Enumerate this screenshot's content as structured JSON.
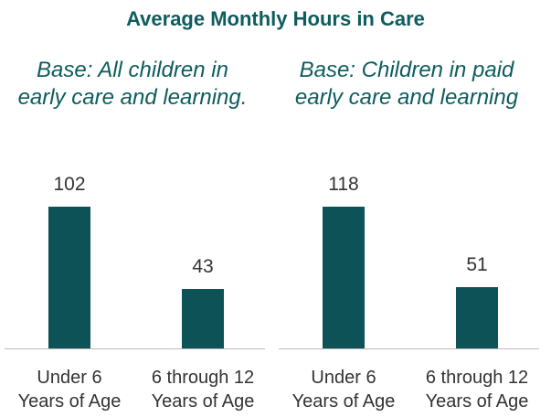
{
  "title": "Average Monthly Hours in Care",
  "chart_data": [
    {
      "type": "bar",
      "subtitle": "Base: All children in early care and learning.",
      "categories": [
        "Under 6 Years of Age",
        "6 through 12 Years of Age"
      ],
      "values": [
        102,
        43
      ],
      "color": "#0d5257"
    },
    {
      "type": "bar",
      "subtitle": "Base: Children in paid early care and learning",
      "categories": [
        "Under 6 Years of Age",
        "6 through 12 Years of Age"
      ],
      "values": [
        118,
        51
      ],
      "color": "#0d5257"
    }
  ]
}
